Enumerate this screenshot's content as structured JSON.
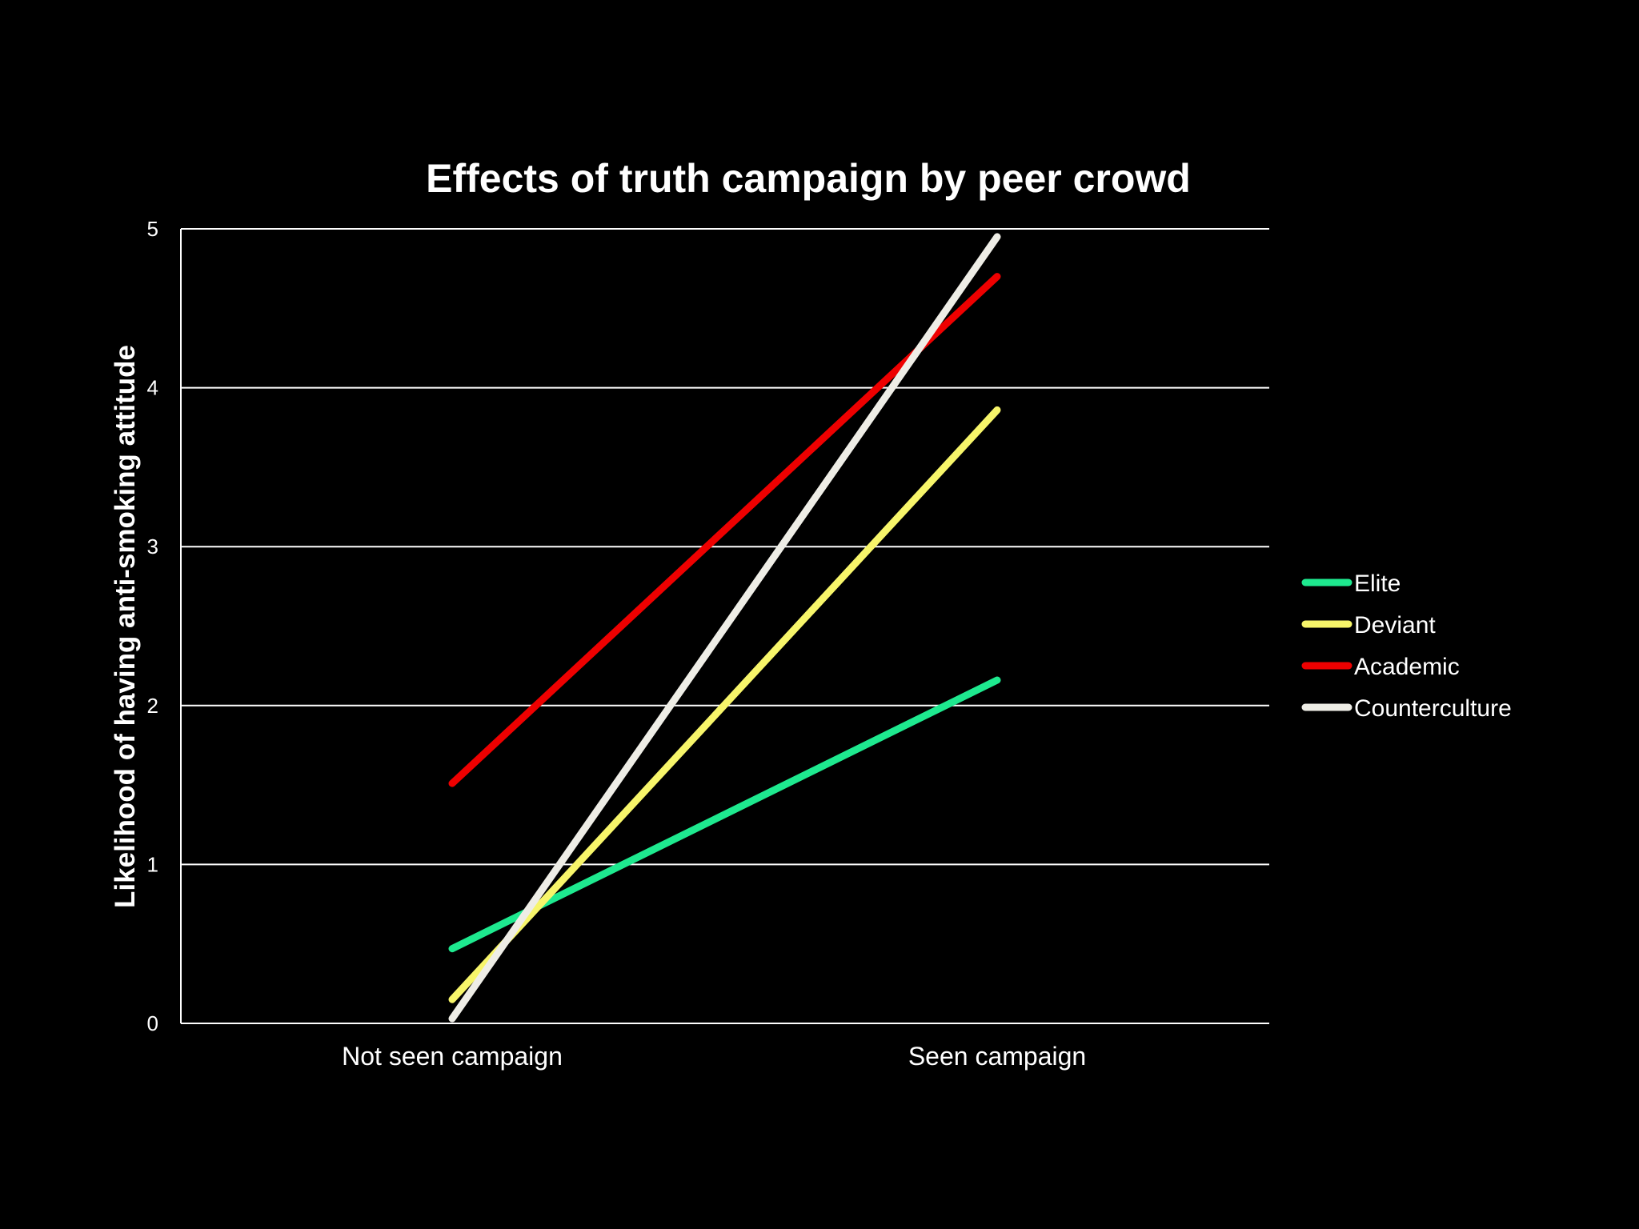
{
  "chart_data": {
    "type": "line",
    "title": "Effects of truth campaign by peer crowd",
    "xlabel": "",
    "ylabel": "Likelihood of having anti-smoking attitude",
    "categories": [
      "Not seen campaign",
      "Seen campaign"
    ],
    "ylim": [
      0,
      5
    ],
    "yticks": [
      "0",
      "1",
      "2",
      "3",
      "4",
      "5"
    ],
    "grid": true,
    "legend_position": "right",
    "series": [
      {
        "name": "Elite",
        "color": "#1ee98f",
        "values": [
          0.47,
          2.16
        ]
      },
      {
        "name": "Deviant",
        "color": "#f7f56a",
        "values": [
          0.15,
          3.86
        ]
      },
      {
        "name": "Academic",
        "color": "#ee0000",
        "values": [
          1.51,
          4.7
        ]
      },
      {
        "name": "Counterculture",
        "color": "#eeede6",
        "values": [
          0.03,
          4.95
        ]
      }
    ]
  }
}
